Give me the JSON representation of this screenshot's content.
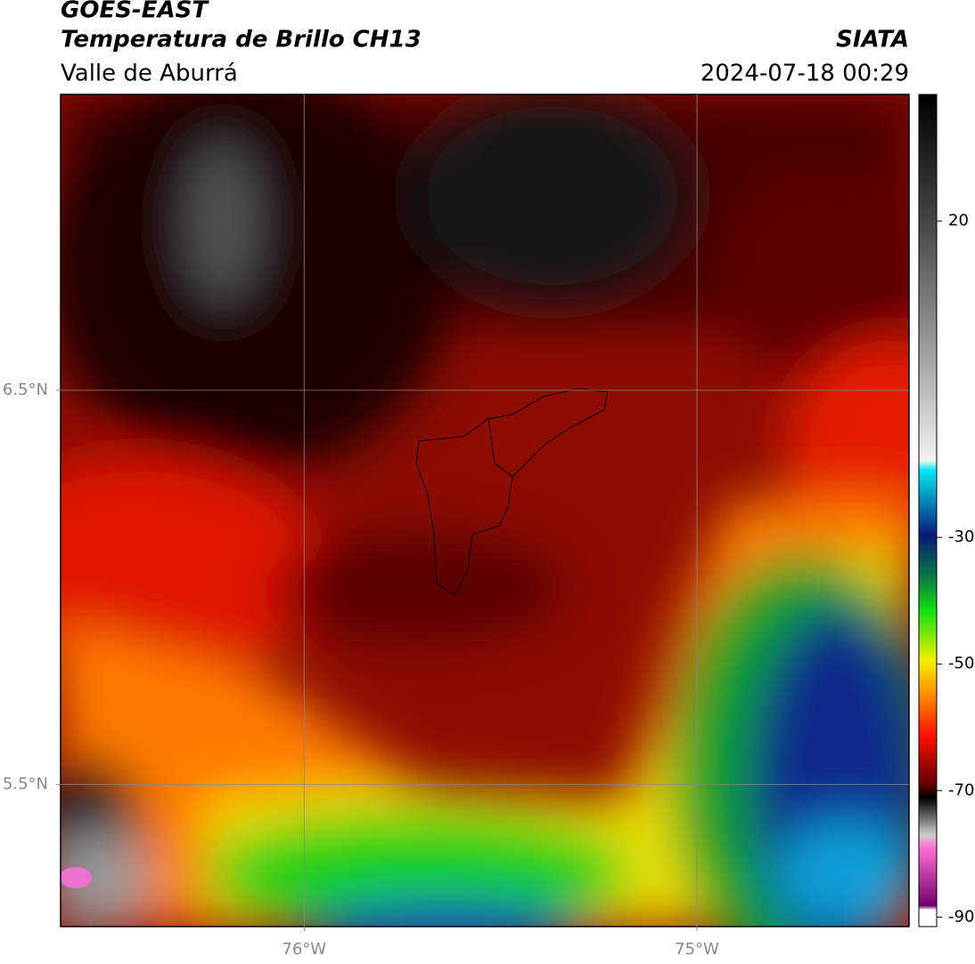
{
  "header": {
    "title": "GOES-EAST",
    "subtitle": "Temperatura de Brillo CH13",
    "region": "Valle de Aburrá",
    "source": "SIATA",
    "datetime": "2024-07-18 00:29"
  },
  "map": {
    "xlim": [
      -76.62,
      -74.46
    ],
    "ylim": [
      5.14,
      7.25
    ],
    "xticks": [
      {
        "value": -76,
        "label": "76°W"
      },
      {
        "value": -75,
        "label": "75°W"
      }
    ],
    "yticks": [
      {
        "value": 6.5,
        "label": "6.5°N"
      },
      {
        "value": 5.5,
        "label": "5.5°N"
      }
    ],
    "grid": true
  },
  "colorbar": {
    "lim": [
      -91.5,
      40
    ],
    "ticks": [
      20,
      -30,
      -50,
      -70,
      -90
    ]
  }
}
